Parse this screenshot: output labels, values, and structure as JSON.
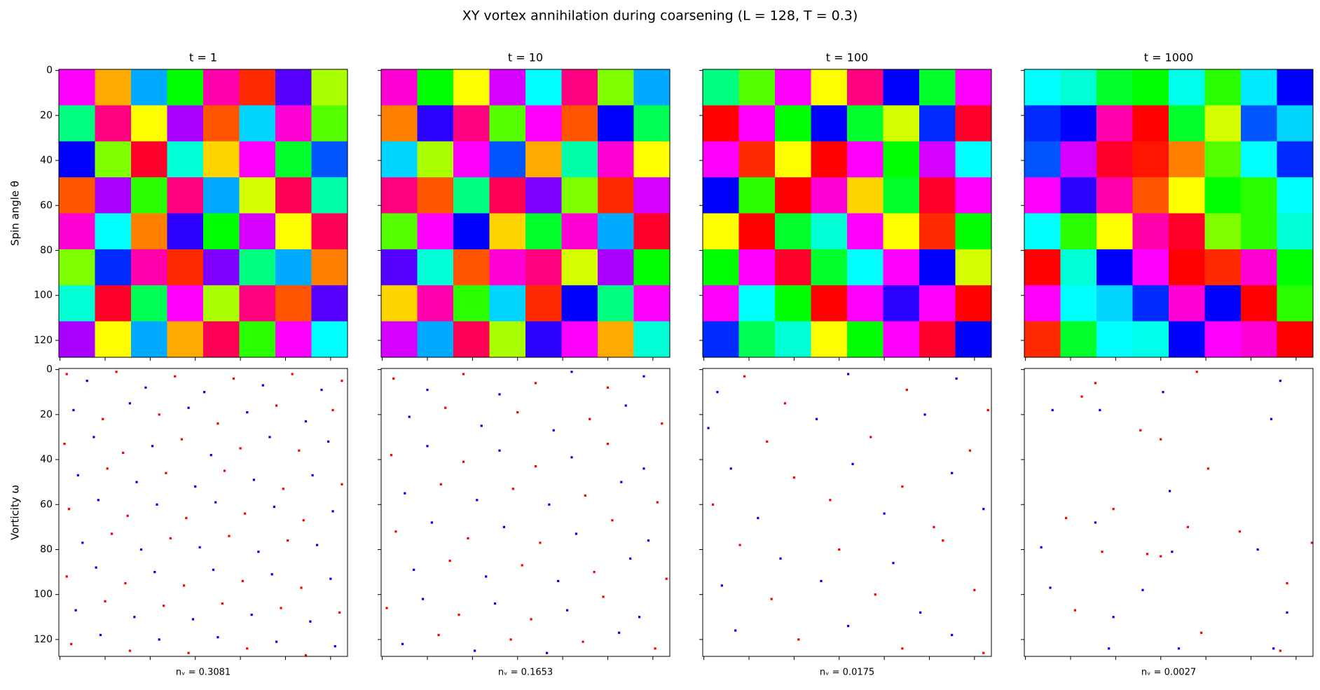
{
  "title": "XY vortex annihilation during coarsening (L = 128, T = 0.3)",
  "xlim": [
    -0.5,
    127.5
  ],
  "ylim": [
    127.5,
    -0.5
  ],
  "xticks": [
    0,
    20,
    40,
    60,
    80,
    100,
    120
  ],
  "yticks": [
    0,
    20,
    40,
    60,
    80,
    100,
    120
  ],
  "pos_color": "#ff0000",
  "neg_color": "#0000ff",
  "chart_data": [
    {
      "type": "heatmap",
      "title": "t = 1",
      "ylabel": "Spin angle θ",
      "grid": [
        [
          300,
          40,
          200,
          120,
          320,
          10,
          260,
          80
        ],
        [
          150,
          330,
          60,
          280,
          20,
          190,
          310,
          100
        ],
        [
          240,
          90,
          350,
          170,
          50,
          300,
          130,
          220
        ],
        [
          20,
          280,
          110,
          330,
          200,
          70,
          340,
          160
        ],
        [
          310,
          180,
          30,
          250,
          120,
          290,
          60,
          340
        ],
        [
          90,
          230,
          320,
          10,
          270,
          150,
          200,
          30
        ],
        [
          170,
          350,
          140,
          300,
          80,
          330,
          20,
          260
        ],
        [
          280,
          60,
          200,
          40,
          340,
          110,
          300,
          180
        ]
      ]
    },
    {
      "type": "heatmap",
      "title": "t = 10",
      "grid": [
        [
          310,
          120,
          60,
          290,
          180,
          330,
          90,
          200
        ],
        [
          30,
          250,
          330,
          100,
          300,
          20,
          240,
          140
        ],
        [
          190,
          80,
          300,
          220,
          40,
          160,
          310,
          60
        ],
        [
          330,
          20,
          150,
          340,
          270,
          90,
          10,
          290
        ],
        [
          100,
          300,
          240,
          50,
          130,
          310,
          200,
          350
        ],
        [
          260,
          170,
          20,
          310,
          330,
          70,
          280,
          120
        ],
        [
          50,
          320,
          110,
          190,
          10,
          240,
          150,
          300
        ],
        [
          290,
          200,
          340,
          80,
          250,
          300,
          40,
          170
        ]
      ]
    },
    {
      "type": "heatmap",
      "title": "t = 100",
      "grid": [
        [
          150,
          100,
          300,
          60,
          330,
          240,
          130,
          300
        ],
        [
          0,
          300,
          120,
          240,
          130,
          70,
          230,
          350
        ],
        [
          300,
          10,
          60,
          0,
          300,
          120,
          290,
          180
        ],
        [
          240,
          110,
          0,
          310,
          50,
          130,
          350,
          300
        ],
        [
          60,
          0,
          130,
          170,
          300,
          60,
          10,
          120
        ],
        [
          120,
          300,
          350,
          130,
          180,
          300,
          240,
          70
        ],
        [
          300,
          180,
          120,
          0,
          300,
          250,
          300,
          0
        ],
        [
          230,
          140,
          170,
          60,
          120,
          300,
          350,
          240
        ]
      ]
    },
    {
      "type": "heatmap",
      "title": "t = 1000",
      "grid": [
        [
          180,
          170,
          130,
          120,
          175,
          110,
          185,
          240
        ],
        [
          230,
          240,
          320,
          0,
          130,
          70,
          220,
          190
        ],
        [
          220,
          290,
          350,
          5,
          30,
          100,
          180,
          230
        ],
        [
          300,
          250,
          320,
          20,
          60,
          120,
          110,
          180
        ],
        [
          180,
          110,
          60,
          320,
          350,
          90,
          110,
          170
        ],
        [
          0,
          170,
          240,
          300,
          0,
          10,
          310,
          120
        ],
        [
          300,
          180,
          190,
          230,
          310,
          240,
          0,
          110
        ],
        [
          10,
          130,
          180,
          175,
          240,
          300,
          310,
          0
        ]
      ]
    },
    {
      "type": "vortex",
      "ylabel": "Vorticity ω",
      "xlabel": "nᵥ = 0.3081",
      "vortices": [
        [
          3,
          2,
          1
        ],
        [
          12,
          5,
          -1
        ],
        [
          25,
          1,
          1
        ],
        [
          38,
          8,
          -1
        ],
        [
          51,
          3,
          1
        ],
        [
          64,
          10,
          -1
        ],
        [
          77,
          4,
          1
        ],
        [
          90,
          7,
          -1
        ],
        [
          103,
          2,
          1
        ],
        [
          116,
          9,
          -1
        ],
        [
          125,
          5,
          1
        ],
        [
          6,
          18,
          -1
        ],
        [
          19,
          22,
          1
        ],
        [
          31,
          15,
          -1
        ],
        [
          44,
          20,
          1
        ],
        [
          57,
          17,
          -1
        ],
        [
          70,
          24,
          1
        ],
        [
          83,
          19,
          -1
        ],
        [
          96,
          16,
          1
        ],
        [
          109,
          23,
          -1
        ],
        [
          121,
          18,
          1
        ],
        [
          2,
          33,
          1
        ],
        [
          15,
          30,
          -1
        ],
        [
          28,
          37,
          1
        ],
        [
          41,
          34,
          -1
        ],
        [
          54,
          31,
          1
        ],
        [
          67,
          38,
          -1
        ],
        [
          80,
          35,
          1
        ],
        [
          93,
          30,
          -1
        ],
        [
          106,
          36,
          1
        ],
        [
          119,
          32,
          -1
        ],
        [
          8,
          47,
          -1
        ],
        [
          21,
          44,
          1
        ],
        [
          34,
          50,
          -1
        ],
        [
          47,
          46,
          1
        ],
        [
          60,
          52,
          -1
        ],
        [
          73,
          45,
          1
        ],
        [
          86,
          49,
          -1
        ],
        [
          99,
          53,
          1
        ],
        [
          112,
          47,
          -1
        ],
        [
          125,
          51,
          1
        ],
        [
          4,
          62,
          1
        ],
        [
          17,
          58,
          -1
        ],
        [
          30,
          65,
          1
        ],
        [
          43,
          60,
          -1
        ],
        [
          56,
          66,
          1
        ],
        [
          69,
          59,
          -1
        ],
        [
          82,
          64,
          1
        ],
        [
          95,
          61,
          -1
        ],
        [
          108,
          67,
          1
        ],
        [
          121,
          63,
          -1
        ],
        [
          10,
          77,
          -1
        ],
        [
          23,
          73,
          1
        ],
        [
          36,
          80,
          -1
        ],
        [
          49,
          75,
          1
        ],
        [
          62,
          79,
          -1
        ],
        [
          75,
          74,
          1
        ],
        [
          88,
          81,
          -1
        ],
        [
          101,
          76,
          1
        ],
        [
          114,
          78,
          -1
        ],
        [
          3,
          92,
          1
        ],
        [
          16,
          88,
          -1
        ],
        [
          29,
          95,
          1
        ],
        [
          42,
          90,
          -1
        ],
        [
          55,
          96,
          1
        ],
        [
          68,
          89,
          -1
        ],
        [
          81,
          94,
          1
        ],
        [
          94,
          91,
          -1
        ],
        [
          107,
          97,
          1
        ],
        [
          120,
          93,
          -1
        ],
        [
          7,
          107,
          -1
        ],
        [
          20,
          103,
          1
        ],
        [
          33,
          110,
          -1
        ],
        [
          46,
          105,
          1
        ],
        [
          59,
          111,
          -1
        ],
        [
          72,
          104,
          1
        ],
        [
          85,
          109,
          -1
        ],
        [
          98,
          106,
          1
        ],
        [
          111,
          112,
          -1
        ],
        [
          124,
          108,
          1
        ],
        [
          5,
          122,
          1
        ],
        [
          18,
          118,
          -1
        ],
        [
          31,
          125,
          1
        ],
        [
          44,
          120,
          -1
        ],
        [
          57,
          126,
          1
        ],
        [
          70,
          119,
          -1
        ],
        [
          83,
          124,
          1
        ],
        [
          96,
          121,
          -1
        ],
        [
          109,
          127,
          1
        ],
        [
          122,
          123,
          -1
        ]
      ]
    },
    {
      "type": "vortex",
      "xlabel": "nᵥ = 0.1653",
      "vortices": [
        [
          5,
          4,
          1
        ],
        [
          20,
          9,
          -1
        ],
        [
          36,
          2,
          1
        ],
        [
          52,
          11,
          -1
        ],
        [
          68,
          6,
          1
        ],
        [
          84,
          1,
          -1
        ],
        [
          100,
          8,
          1
        ],
        [
          116,
          3,
          -1
        ],
        [
          12,
          21,
          -1
        ],
        [
          28,
          17,
          1
        ],
        [
          44,
          25,
          -1
        ],
        [
          60,
          19,
          1
        ],
        [
          76,
          27,
          -1
        ],
        [
          92,
          22,
          1
        ],
        [
          108,
          16,
          -1
        ],
        [
          124,
          24,
          1
        ],
        [
          4,
          38,
          1
        ],
        [
          20,
          34,
          -1
        ],
        [
          36,
          41,
          1
        ],
        [
          52,
          36,
          -1
        ],
        [
          68,
          43,
          1
        ],
        [
          84,
          39,
          -1
        ],
        [
          100,
          33,
          1
        ],
        [
          116,
          44,
          -1
        ],
        [
          10,
          55,
          -1
        ],
        [
          26,
          51,
          1
        ],
        [
          42,
          58,
          -1
        ],
        [
          58,
          53,
          1
        ],
        [
          74,
          60,
          -1
        ],
        [
          90,
          56,
          1
        ],
        [
          106,
          50,
          -1
        ],
        [
          122,
          59,
          1
        ],
        [
          6,
          72,
          1
        ],
        [
          22,
          68,
          -1
        ],
        [
          38,
          75,
          1
        ],
        [
          54,
          70,
          -1
        ],
        [
          70,
          77,
          1
        ],
        [
          86,
          73,
          -1
        ],
        [
          102,
          67,
          1
        ],
        [
          118,
          76,
          -1
        ],
        [
          14,
          89,
          -1
        ],
        [
          30,
          85,
          1
        ],
        [
          46,
          92,
          -1
        ],
        [
          62,
          87,
          1
        ],
        [
          78,
          94,
          -1
        ],
        [
          94,
          90,
          1
        ],
        [
          110,
          84,
          -1
        ],
        [
          126,
          93,
          1
        ],
        [
          2,
          106,
          1
        ],
        [
          18,
          102,
          -1
        ],
        [
          34,
          109,
          1
        ],
        [
          50,
          104,
          -1
        ],
        [
          66,
          111,
          1
        ],
        [
          82,
          107,
          -1
        ],
        [
          98,
          101,
          1
        ],
        [
          114,
          110,
          -1
        ],
        [
          9,
          122,
          -1
        ],
        [
          25,
          118,
          1
        ],
        [
          41,
          125,
          -1
        ],
        [
          57,
          120,
          1
        ],
        [
          73,
          126,
          -1
        ],
        [
          89,
          121,
          1
        ],
        [
          105,
          117,
          -1
        ],
        [
          121,
          124,
          1
        ]
      ]
    },
    {
      "type": "vortex",
      "xlabel": "nᵥ = 0.0175",
      "vortices": [
        [
          18,
          3,
          1
        ],
        [
          6,
          10,
          -1
        ],
        [
          36,
          15,
          1
        ],
        [
          64,
          2,
          -1
        ],
        [
          90,
          9,
          1
        ],
        [
          112,
          4,
          -1
        ],
        [
          126,
          18,
          1
        ],
        [
          2,
          26,
          -1
        ],
        [
          28,
          32,
          1
        ],
        [
          50,
          22,
          -1
        ],
        [
          74,
          30,
          1
        ],
        [
          98,
          20,
          -1
        ],
        [
          118,
          36,
          1
        ],
        [
          12,
          44,
          -1
        ],
        [
          40,
          48,
          1
        ],
        [
          66,
          42,
          -1
        ],
        [
          88,
          52,
          1
        ],
        [
          110,
          46,
          -1
        ],
        [
          4,
          60,
          1
        ],
        [
          24,
          66,
          -1
        ],
        [
          56,
          58,
          1
        ],
        [
          80,
          64,
          -1
        ],
        [
          102,
          70,
          1
        ],
        [
          124,
          62,
          -1
        ],
        [
          16,
          78,
          1
        ],
        [
          34,
          84,
          -1
        ],
        [
          60,
          80,
          1
        ],
        [
          84,
          86,
          -1
        ],
        [
          106,
          76,
          1
        ],
        [
          8,
          96,
          -1
        ],
        [
          30,
          102,
          1
        ],
        [
          52,
          94,
          -1
        ],
        [
          76,
          100,
          1
        ],
        [
          96,
          108,
          -1
        ],
        [
          120,
          98,
          1
        ],
        [
          14,
          116,
          -1
        ],
        [
          42,
          120,
          1
        ],
        [
          64,
          114,
          -1
        ],
        [
          88,
          124,
          1
        ],
        [
          110,
          118,
          -1
        ],
        [
          124,
          126,
          1
        ]
      ]
    },
    {
      "type": "vortex",
      "xlabel": "nᵥ = 0.0027",
      "vortices": [
        [
          76,
          1,
          1
        ],
        [
          61,
          10,
          -1
        ],
        [
          113,
          5,
          -1
        ],
        [
          25,
          12,
          1
        ],
        [
          31,
          6,
          1
        ],
        [
          12,
          18,
          -1
        ],
        [
          33,
          18,
          -1
        ],
        [
          109,
          22,
          -1
        ],
        [
          51,
          27,
          1
        ],
        [
          60,
          31,
          1
        ],
        [
          64,
          54,
          -1
        ],
        [
          81,
          44,
          1
        ],
        [
          39,
          62,
          1
        ],
        [
          18,
          66,
          1
        ],
        [
          31,
          68,
          -1
        ],
        [
          72,
          70,
          1
        ],
        [
          95,
          72,
          1
        ],
        [
          7,
          79,
          -1
        ],
        [
          34,
          81,
          1
        ],
        [
          54,
          82,
          1
        ],
        [
          60,
          83,
          1
        ],
        [
          65,
          81,
          -1
        ],
        [
          103,
          80,
          -1
        ],
        [
          127,
          77,
          1
        ],
        [
          116,
          95,
          1
        ],
        [
          11,
          97,
          -1
        ],
        [
          52,
          98,
          -1
        ],
        [
          22,
          107,
          1
        ],
        [
          39,
          110,
          -1
        ],
        [
          116,
          108,
          -1
        ],
        [
          78,
          117,
          1
        ],
        [
          68,
          124,
          -1
        ],
        [
          37,
          124,
          -1
        ],
        [
          110,
          124,
          -1
        ],
        [
          113,
          125,
          1
        ]
      ]
    }
  ]
}
